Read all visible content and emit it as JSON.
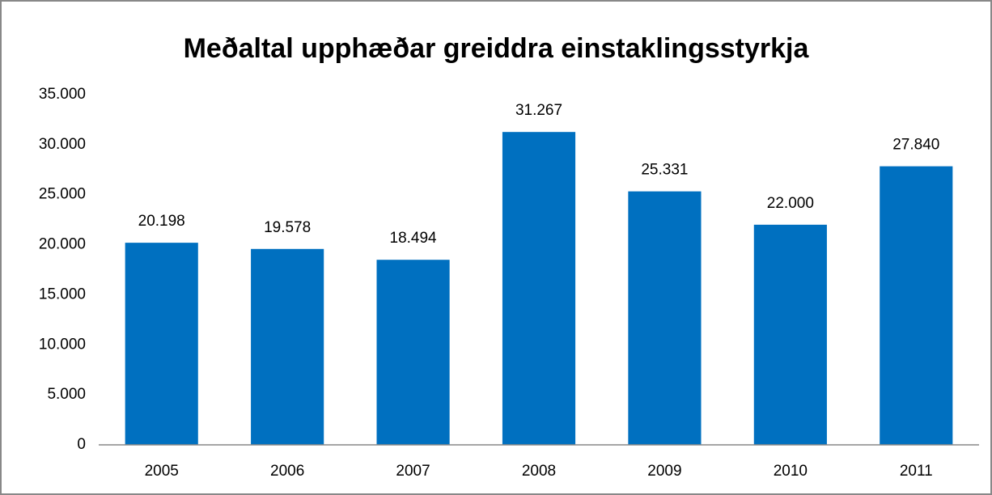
{
  "chart_data": {
    "type": "bar",
    "title": "Meðaltal upphæðar greiddra einstaklingsstyrkja",
    "categories": [
      "2005",
      "2006",
      "2007",
      "2008",
      "2009",
      "2010",
      "2011"
    ],
    "values": [
      20198,
      19578,
      18494,
      31267,
      25331,
      22000,
      27840
    ],
    "value_labels": [
      "20.198",
      "19.578",
      "18.494",
      "31.267",
      "25.331",
      "22.000",
      "27.840"
    ],
    "color": "#0070c0",
    "ylim": [
      0,
      35000
    ],
    "yticks": [
      0,
      {
        "value": 5000,
        "label": "5.000"
      },
      {
        "value": 10000,
        "label": "10.000"
      },
      {
        "value": 15000,
        "label": "15.000"
      },
      {
        "value": 20000,
        "label": "20.000"
      },
      {
        "value": 25000,
        "label": "25.000"
      },
      {
        "value": 30000,
        "label": "30.000"
      },
      {
        "value": 35000,
        "label": "35.000"
      }
    ],
    "grid": false
  }
}
